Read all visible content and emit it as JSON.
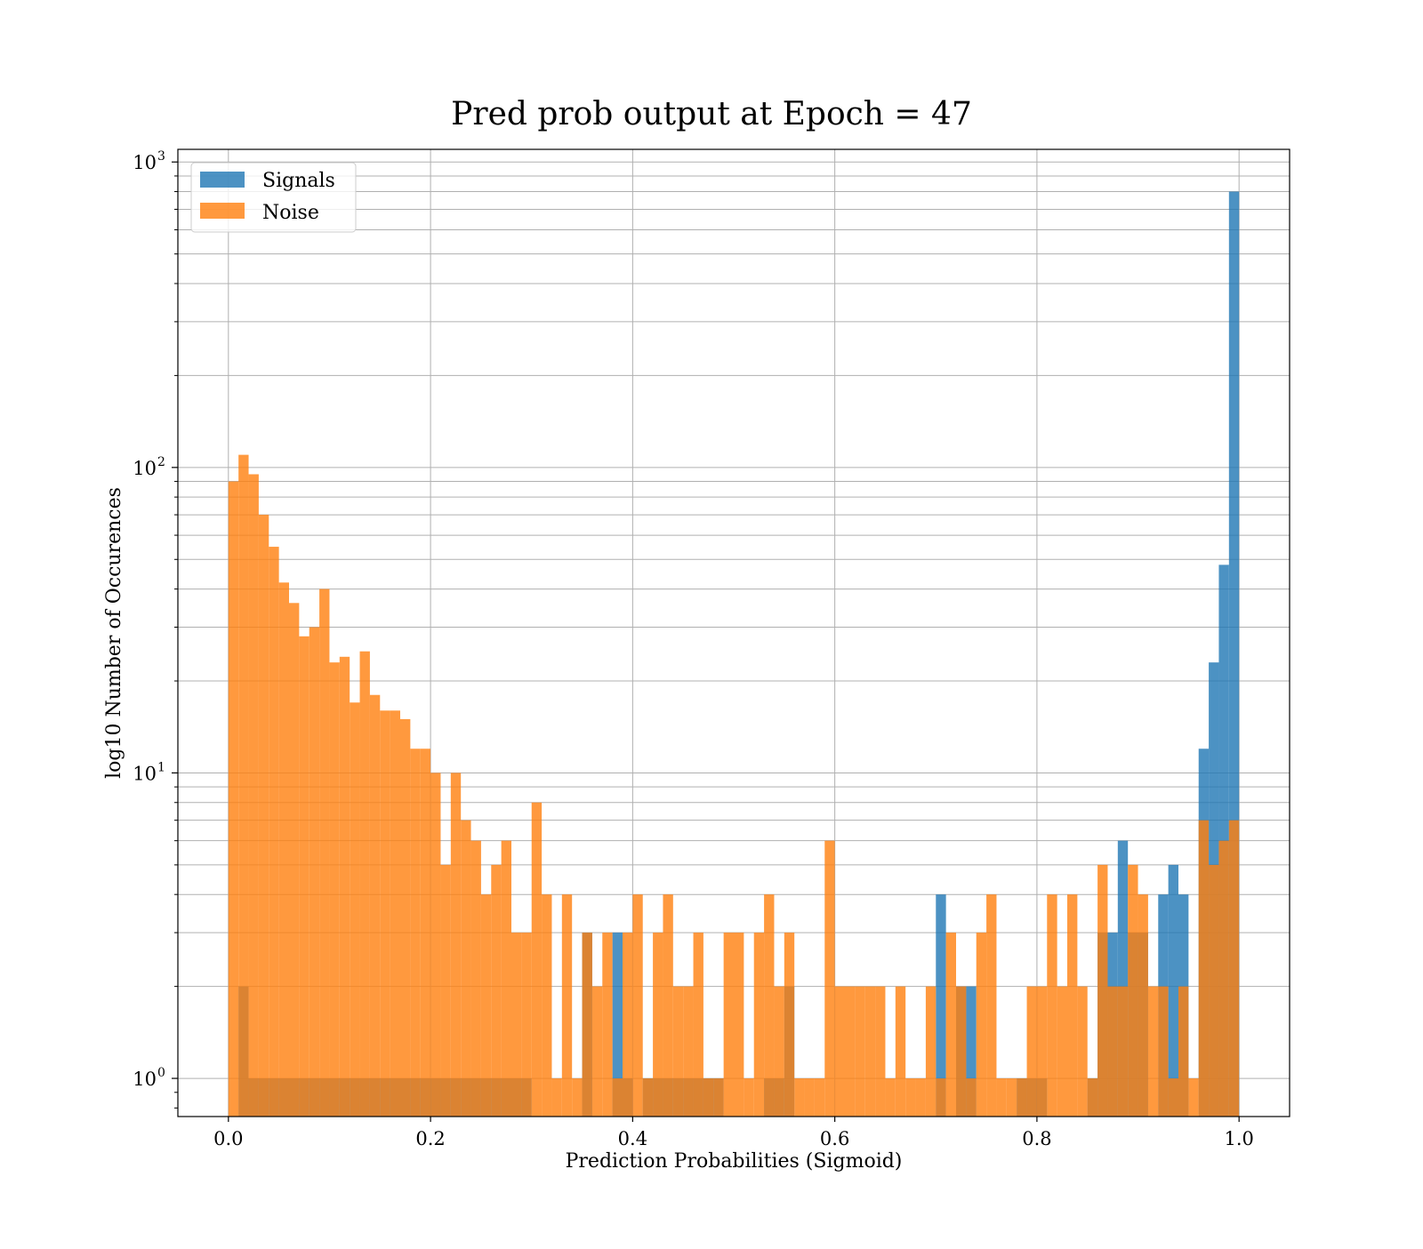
{
  "chart_data": {
    "type": "bar",
    "title": "Pred prob output at Epoch = 47",
    "xlabel": "Prediction Probabilities (Sigmoid)",
    "ylabel": "log10 Number of Occurences",
    "xlim": [
      -0.05,
      1.05
    ],
    "ylim": [
      0.75,
      1100
    ],
    "yscale": "log",
    "grid": "major and minor on y, major on x",
    "legend_position": "top-left",
    "bins": 100,
    "bin_range": [
      0.0,
      1.0
    ],
    "x_ticks": [
      "0.0",
      "0.2",
      "0.4",
      "0.6",
      "0.8",
      "1.0"
    ],
    "y_ticks": [
      {
        "base": "10",
        "exp": "0",
        "value": 1
      },
      {
        "base": "10",
        "exp": "1",
        "value": 10
      },
      {
        "base": "10",
        "exp": "2",
        "value": 100
      },
      {
        "base": "10",
        "exp": "3",
        "value": 1000
      }
    ],
    "series": [
      {
        "name": "Signals",
        "color": "#1f77b4",
        "opacity": 0.8,
        "counts": [
          0,
          2,
          1,
          1,
          1,
          1,
          1,
          1,
          1,
          1,
          1,
          1,
          1,
          1,
          1,
          1,
          1,
          1,
          1,
          1,
          1,
          1,
          1,
          1,
          1,
          1,
          1,
          1,
          1,
          1,
          0,
          0,
          0,
          0,
          0,
          3,
          0,
          0,
          3,
          1,
          0,
          1,
          1,
          1,
          1,
          1,
          1,
          1,
          1,
          0,
          0,
          0,
          0,
          1,
          1,
          2,
          0,
          0,
          0,
          0,
          0,
          0,
          0,
          0,
          0,
          0,
          0,
          0,
          0,
          0,
          4,
          0,
          2,
          2,
          0,
          0,
          0,
          0,
          1,
          1,
          1,
          0,
          0,
          0,
          0,
          1,
          3,
          3,
          6,
          3,
          3,
          0,
          4,
          5,
          4,
          0,
          12,
          23,
          48,
          800
        ]
      },
      {
        "name": "Noise",
        "color": "#ff7f0e",
        "opacity": 0.8,
        "counts": [
          90,
          110,
          95,
          70,
          55,
          42,
          36,
          28,
          30,
          40,
          23,
          24,
          17,
          25,
          18,
          16,
          16,
          15,
          12,
          12,
          10,
          5,
          10,
          7,
          6,
          4,
          5,
          6,
          3,
          3,
          8,
          4,
          1,
          4,
          1,
          3,
          2,
          3,
          1,
          3,
          4,
          1,
          3,
          4,
          2,
          2,
          3,
          1,
          1,
          3,
          3,
          1,
          3,
          4,
          2,
          3,
          1,
          1,
          1,
          6,
          2,
          2,
          2,
          2,
          2,
          1,
          2,
          1,
          1,
          2,
          1,
          3,
          2,
          1,
          3,
          4,
          1,
          1,
          1,
          2,
          2,
          4,
          2,
          4,
          2,
          1,
          5,
          2,
          2,
          5,
          4,
          2,
          2,
          1,
          2,
          1,
          7,
          5,
          6,
          7
        ]
      }
    ]
  }
}
